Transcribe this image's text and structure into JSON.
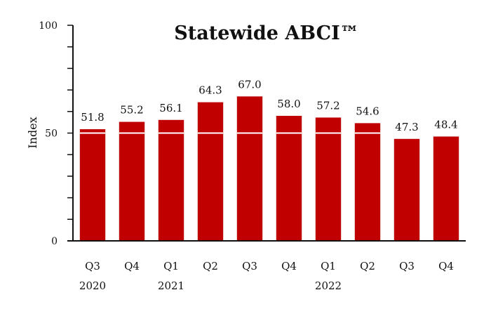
{
  "chart_data": {
    "type": "bar",
    "title": "Statewide ABCI™",
    "ylabel": "Index",
    "ylim": [
      0,
      100
    ],
    "yticks": [
      0,
      50,
      100
    ],
    "categories": [
      "Q3",
      "Q4",
      "Q1",
      "Q2",
      "Q3",
      "Q4",
      "Q1",
      "Q2",
      "Q3",
      "Q4"
    ],
    "year_groups": [
      {
        "label": "2020",
        "category_index": 0
      },
      {
        "label": "2021",
        "category_index": 2
      },
      {
        "label": "2022",
        "category_index": 6
      }
    ],
    "values": [
      51.8,
      55.2,
      56.1,
      64.3,
      67.0,
      58.0,
      57.2,
      54.6,
      47.3,
      48.4
    ],
    "value_labels": [
      "51.8",
      "55.2",
      "56.1",
      "64.3",
      "67.0",
      "58.0",
      "57.2",
      "54.6",
      "47.3",
      "48.4"
    ],
    "reference_line": 50,
    "bar_color": "#c00000",
    "reference_line_color": "#ffffff",
    "axis_color": "#111111"
  }
}
